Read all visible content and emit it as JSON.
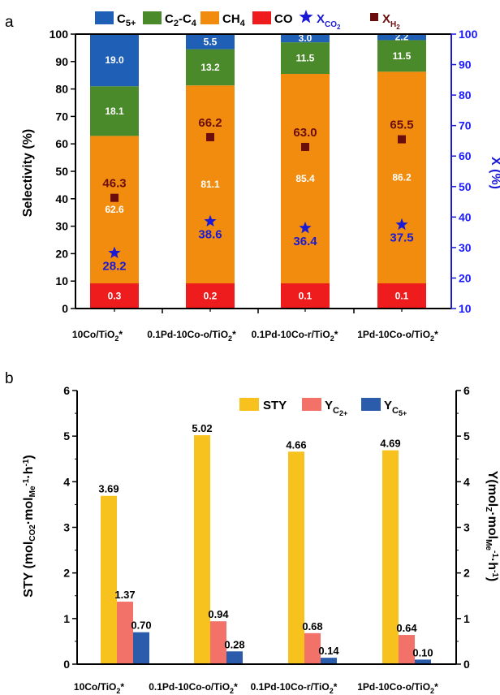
{
  "chart_data": [
    {
      "panel": "a",
      "type": "bar",
      "stacked": true,
      "categories": [
        "10Co/TiO₂*",
        "0.1Pd-10Co-o/TiO₂*",
        "0.1Pd-10Co-r/TiO₂*",
        "1Pd-10Co-o/TiO₂*"
      ],
      "ylabel": "Selectivity (%)",
      "ylim": [
        0,
        100
      ],
      "yticks": [
        "0",
        "10",
        "20",
        "30",
        "40",
        "50",
        "60",
        "70",
        "80",
        "90",
        "100"
      ],
      "y2label": "X (%)",
      "y2lim": [
        10,
        100
      ],
      "y2ticks": [
        "10",
        "20",
        "30",
        "40",
        "50",
        "60",
        "70",
        "80",
        "90",
        "100"
      ],
      "legend_position": "top",
      "series": [
        {
          "name": "CO",
          "color": "#ee1c1c",
          "values": [
            0.3,
            0.2,
            0.1,
            0.1
          ],
          "labels": [
            "0.3",
            "0.2",
            "0.1",
            "0.1"
          ]
        },
        {
          "name": "CH₄",
          "color": "#f28c0f",
          "values": [
            62.6,
            81.1,
            85.4,
            86.2
          ],
          "labels": [
            "62.6",
            "81.1",
            "85.4",
            "86.2"
          ]
        },
        {
          "name": "C₂-C₄",
          "color": "#4a8a2a",
          "values": [
            18.1,
            13.2,
            11.5,
            11.5
          ],
          "labels": [
            "18.1",
            "13.2",
            "11.5",
            "11.5"
          ]
        },
        {
          "name": "C₅₊",
          "color": "#1f5fb5",
          "values": [
            19.0,
            5.5,
            3.0,
            2.2
          ],
          "labels": [
            "19.0",
            "5.5",
            "3.0",
            "2.2"
          ]
        }
      ],
      "markers": [
        {
          "name": "Xₕ₂",
          "legend_name": "XH2",
          "marker": "square",
          "color": "#6b0d0d",
          "axis": "right",
          "values": [
            46.3,
            66.2,
            63.0,
            65.5
          ],
          "labels": [
            "46.3",
            "66.2",
            "63.0",
            "65.5"
          ]
        },
        {
          "name": "XCO2",
          "marker": "star",
          "color": "#1a1ad6",
          "axis": "right",
          "values": [
            28.2,
            38.6,
            36.4,
            37.5
          ],
          "labels": [
            "28.2",
            "38.6",
            "36.4",
            "37.5"
          ]
        }
      ]
    },
    {
      "panel": "b",
      "type": "bar",
      "categories": [
        "10Co/TiO₂*",
        "0.1Pd-10Co-o/TiO₂*",
        "0.1Pd-10Co-r/TiO₂*",
        "1Pd-10Co-o/TiO₂*"
      ],
      "ylim": [
        0,
        6
      ],
      "yticks": [
        "0",
        "1",
        "2",
        "3",
        "4",
        "5",
        "6"
      ],
      "y2lim": [
        0,
        6
      ],
      "legend_position": "top-right",
      "series": [
        {
          "name": "STY",
          "color": "#f7c21e",
          "values": [
            3.69,
            5.02,
            4.66,
            4.69
          ],
          "labels": [
            "3.69",
            "5.02",
            "4.66",
            "4.69"
          ]
        },
        {
          "name": "YC2+",
          "color": "#f2726a",
          "values": [
            1.37,
            0.94,
            0.68,
            0.64
          ],
          "labels": [
            "1.37",
            "0.94",
            "0.68",
            "0.64"
          ]
        },
        {
          "name": "YC5+",
          "color": "#2a5cab",
          "values": [
            0.7,
            0.28,
            0.14,
            0.1
          ],
          "labels": [
            "0.70",
            "0.28",
            "0.14",
            "0.10"
          ]
        }
      ]
    }
  ]
}
